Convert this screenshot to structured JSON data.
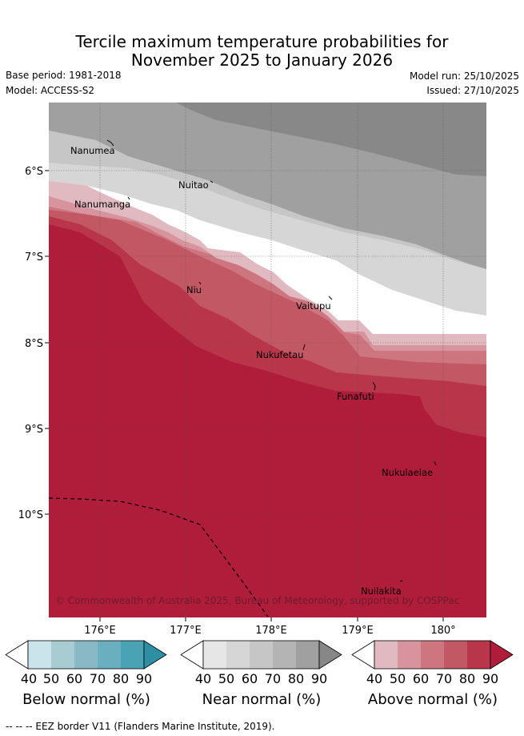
{
  "title_line1": "Tercile maximum temperature probabilities for",
  "title_line2": "November 2025 to January 2026",
  "base_period": "Base period: 1981-2018",
  "model": "Model: ACCESS-S2",
  "model_run": "Model run: 25/10/2025",
  "issued": "Issued: 27/10/2025",
  "map": {
    "lon_labels": [
      "176°E",
      "177°E",
      "178°E",
      "179°E",
      "180°"
    ],
    "lat_labels": [
      "6°S",
      "7°S",
      "8°S",
      "9°S",
      "10°S"
    ],
    "islands": [
      "Nanumea",
      "Nuitao",
      "Nanumanga",
      "Niu",
      "Vaitupu",
      "Nukufetau",
      "Funafuti",
      "Nukulaelae",
      "Nuilakita"
    ],
    "copyright": "© Commonwealth of Australia 2025, Bureau of Meteorology, supported by COSPPac"
  },
  "colorbars": [
    {
      "title": "Below normal (%)",
      "ticks": [
        "40",
        "50",
        "60",
        "70",
        "80",
        "90"
      ],
      "colors": [
        "#ffffff",
        "#cbe4eb",
        "#a9cbd2",
        "#8ab9c6",
        "#6aafbf",
        "#4aa3b4",
        "#2e8fa4"
      ]
    },
    {
      "title": "Near normal (%)",
      "ticks": [
        "40",
        "50",
        "60",
        "70",
        "80",
        "90"
      ],
      "colors": [
        "#ffffff",
        "#e6e6e6",
        "#d6d6d6",
        "#c6c6c6",
        "#b4b4b4",
        "#a0a0a0",
        "#878787"
      ]
    },
    {
      "title": "Above normal (%)",
      "ticks": [
        "40",
        "50",
        "60",
        "70",
        "80",
        "90"
      ],
      "colors": [
        "#ffffff",
        "#e1b9c0",
        "#d7949e",
        "#cd767f",
        "#c35865",
        "#b9354a",
        "#b01d3b"
      ]
    }
  ],
  "footnote": "--  --  -- EEZ border V11 (Flanders Marine Institute, 2019)."
}
